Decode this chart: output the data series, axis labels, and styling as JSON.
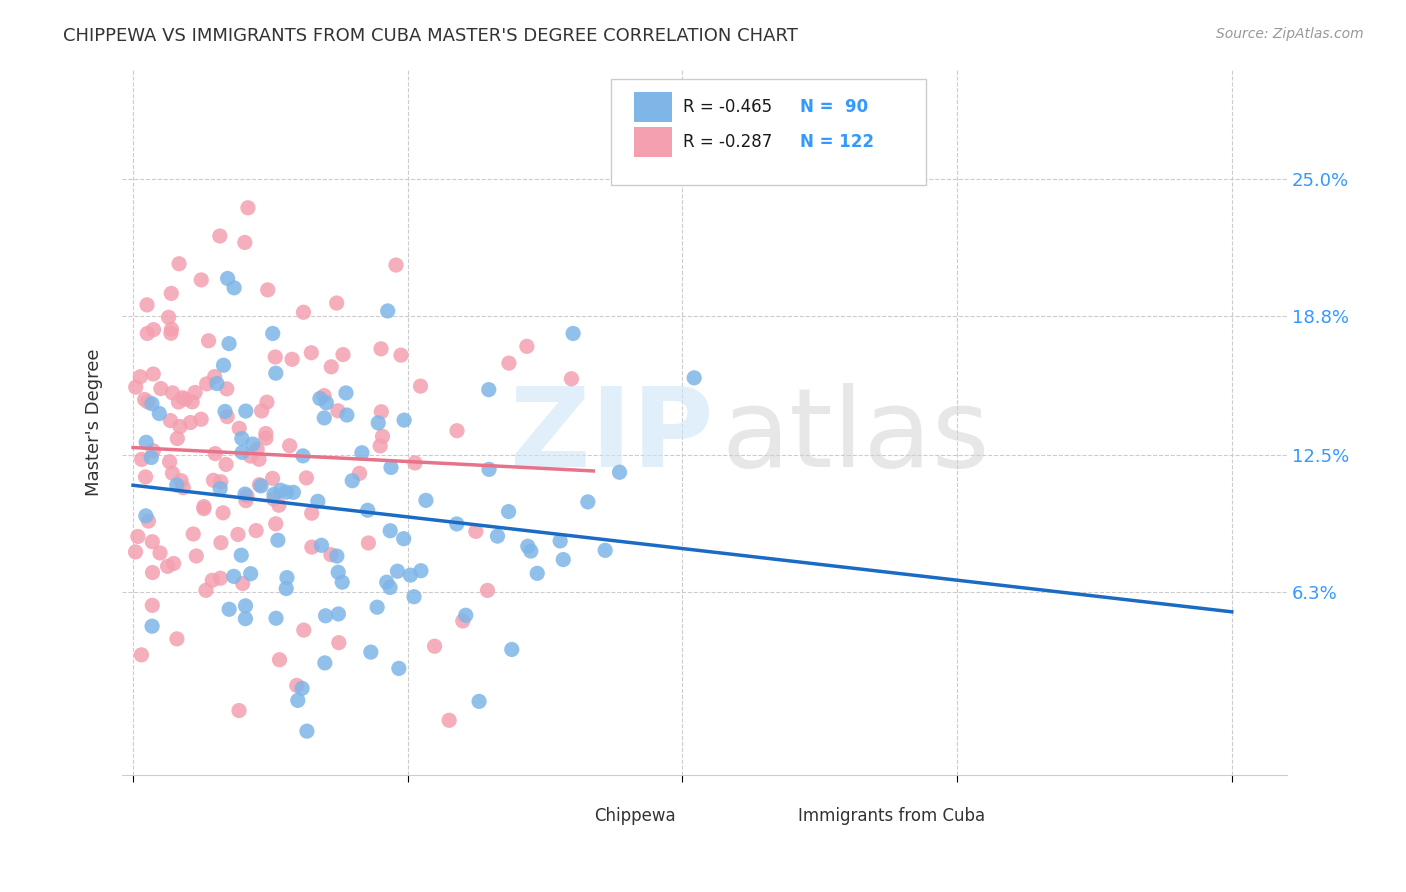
{
  "title": "CHIPPEWA VS IMMIGRANTS FROM CUBA MASTER'S DEGREE CORRELATION CHART",
  "source": "Source: ZipAtlas.com",
  "ylabel": "Master's Degree",
  "ytick_labels": [
    "25.0%",
    "18.8%",
    "12.5%",
    "6.3%"
  ],
  "ytick_values": [
    0.25,
    0.188,
    0.125,
    0.063
  ],
  "legend_label_blue": "Chippewa",
  "legend_label_pink": "Immigrants from Cuba",
  "blue_color": "#7EB6E8",
  "pink_color": "#F4A0B0",
  "blue_line_color": "#1A6BC4",
  "pink_line_color": "#E8728A",
  "blue_r": -0.465,
  "blue_n": 90,
  "pink_r": -0.287,
  "pink_n": 122,
  "blue_slope": -0.075,
  "blue_intercept": 0.108,
  "pink_slope": -0.06,
  "pink_intercept": 0.133
}
